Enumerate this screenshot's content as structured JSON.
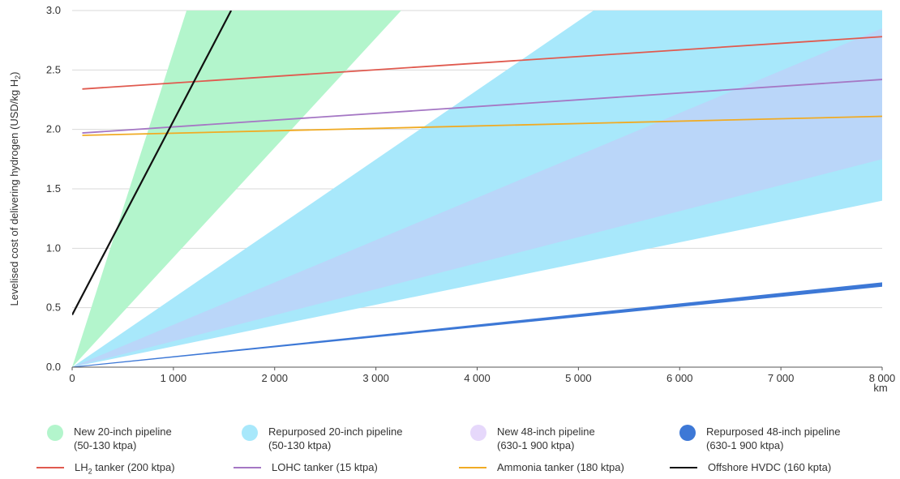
{
  "chart_data": {
    "type": "area",
    "ylabel_main": "Levelised cost of delivering hydrogen (USD/kg H",
    "ylabel_sub": "2",
    "ylabel_end": ")",
    "x_unit": "km",
    "xlim": [
      0,
      8000
    ],
    "ylim": [
      0,
      3.0
    ],
    "x_ticks": [
      {
        "v": 0,
        "label": "0"
      },
      {
        "v": 1000,
        "label": "1 000"
      },
      {
        "v": 2000,
        "label": "2 000"
      },
      {
        "v": 3000,
        "label": "3 000"
      },
      {
        "v": 4000,
        "label": "4 000"
      },
      {
        "v": 5000,
        "label": "5 000"
      },
      {
        "v": 6000,
        "label": "6 000"
      },
      {
        "v": 7000,
        "label": "7 000"
      },
      {
        "v": 8000,
        "label": "8 000"
      }
    ],
    "y_ticks": [
      {
        "v": 0,
        "label": "0.0"
      },
      {
        "v": 0.5,
        "label": "0.5"
      },
      {
        "v": 1.0,
        "label": "1.0"
      },
      {
        "v": 1.5,
        "label": "1.5"
      },
      {
        "v": 2.0,
        "label": "2.0"
      },
      {
        "v": 2.5,
        "label": "2.5"
      },
      {
        "v": 3.0,
        "label": "3.0"
      }
    ],
    "grid": true,
    "bands": [
      {
        "name": "New 20-inch pipeline (50-130 ktpa)",
        "color": "#b3f5cc",
        "lower": [
          [
            0,
            0
          ],
          [
            3250,
            3.0
          ]
        ],
        "upper": [
          [
            0,
            0
          ],
          [
            1130,
            3.0
          ]
        ]
      },
      {
        "name": "Repurposed 20-inch pipeline (50-130 ktpa)",
        "color": "#a8e8fb",
        "lower": [
          [
            0,
            0
          ],
          [
            8000,
            1.4
          ]
        ],
        "upper": [
          [
            0,
            0
          ],
          [
            5150,
            3.0
          ],
          [
            8000,
            3.0
          ]
        ]
      },
      {
        "name": "New 48-inch pipeline (630-1 900 ktpa)",
        "color": "#c8c6f7",
        "lower": [
          [
            0,
            0
          ],
          [
            8000,
            1.75
          ]
        ],
        "upper": [
          [
            0,
            0
          ],
          [
            8000,
            2.85
          ]
        ]
      },
      {
        "name": "Repurposed 48-inch pipeline (630-1 900 ktpa)",
        "color": "#3d78d6",
        "lower": [
          [
            0,
            0
          ],
          [
            8000,
            0.68
          ]
        ],
        "upper": [
          [
            0,
            0
          ],
          [
            8000,
            0.71
          ]
        ]
      }
    ],
    "lines": [
      {
        "name": "LH2 tanker (200 ktpa)",
        "color": "#e05a4f",
        "points": [
          [
            100,
            2.34
          ],
          [
            8000,
            2.78
          ]
        ]
      },
      {
        "name": "LOHC tanker (15 ktpa)",
        "color": "#a577c4",
        "points": [
          [
            100,
            1.97
          ],
          [
            8000,
            2.42
          ]
        ]
      },
      {
        "name": "Ammonia tanker (180 ktpa)",
        "color": "#f0ab24",
        "points": [
          [
            100,
            1.95
          ],
          [
            8000,
            2.11
          ]
        ]
      },
      {
        "name": "Offshore HVDC (160 kpta)",
        "color": "#111111",
        "points": [
          [
            0,
            0.44
          ],
          [
            1570,
            3.0
          ]
        ]
      }
    ]
  },
  "legend": {
    "row1": [
      {
        "line1": "New 20-inch pipeline",
        "line2": "(50-130 ktpa)",
        "color": "#b3f5cc"
      },
      {
        "line1": "Repurposed 20-inch pipeline",
        "line2": "(50-130 ktpa)",
        "color": "#a8e8fb"
      },
      {
        "line1": "New 48-inch pipeline",
        "line2": "(630-1 900 ktpa)",
        "color": "#e6d8fb"
      },
      {
        "line1": "Repurposed 48-inch pipeline",
        "line2": "(630-1 900 ktpa)",
        "color": "#3d78d6"
      }
    ],
    "row2": [
      {
        "pre": "LH",
        "sub": "2",
        "post": " tanker (200 ktpa)",
        "color": "#e05a4f"
      },
      {
        "pre": "LOHC tanker (15 ktpa)",
        "sub": "",
        "post": "",
        "color": "#a577c4"
      },
      {
        "pre": "Ammonia tanker (180 ktpa)",
        "sub": "",
        "post": "",
        "color": "#f0ab24"
      },
      {
        "pre": "Offshore HVDC (160 kpta)",
        "sub": "",
        "post": "",
        "color": "#111111"
      }
    ]
  }
}
